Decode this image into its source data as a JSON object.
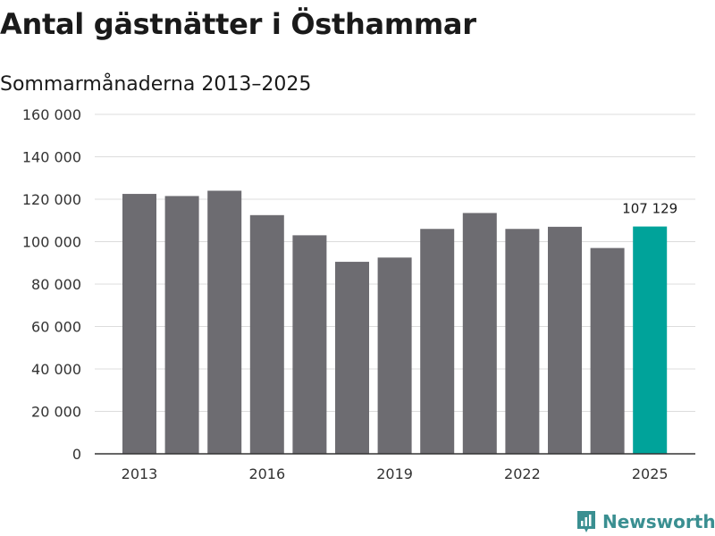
{
  "chart_data": {
    "type": "bar",
    "title": "Antal gästnätter i Östhammar",
    "subtitle": "Sommarmånaderna 2013–2025",
    "x": [
      2013,
      2014,
      2015,
      2016,
      2017,
      2018,
      2019,
      2020,
      2021,
      2022,
      2023,
      2024,
      2025
    ],
    "values": [
      122500,
      121500,
      124000,
      112500,
      103000,
      90500,
      92500,
      106000,
      113500,
      106000,
      107000,
      97000,
      107129
    ],
    "x_tick_labels": [
      "2013",
      "2016",
      "2019",
      "2022",
      "2025"
    ],
    "y_tick_labels": [
      "0",
      "20 000",
      "40 000",
      "60 000",
      "80 000",
      "100 000",
      "120 000",
      "140 000",
      "160 000"
    ],
    "ylim": [
      0,
      160000
    ],
    "grid": true,
    "highlight": {
      "index": 12,
      "label": "107 129"
    },
    "colors": {
      "bar": "#6d6c71",
      "highlight": "#00a39a",
      "grid": "#dcdcdc",
      "axis": "#333333"
    }
  },
  "brand": {
    "name": "Newsworthy",
    "icon": "chart-logo-icon",
    "color": "#3a8f91"
  }
}
